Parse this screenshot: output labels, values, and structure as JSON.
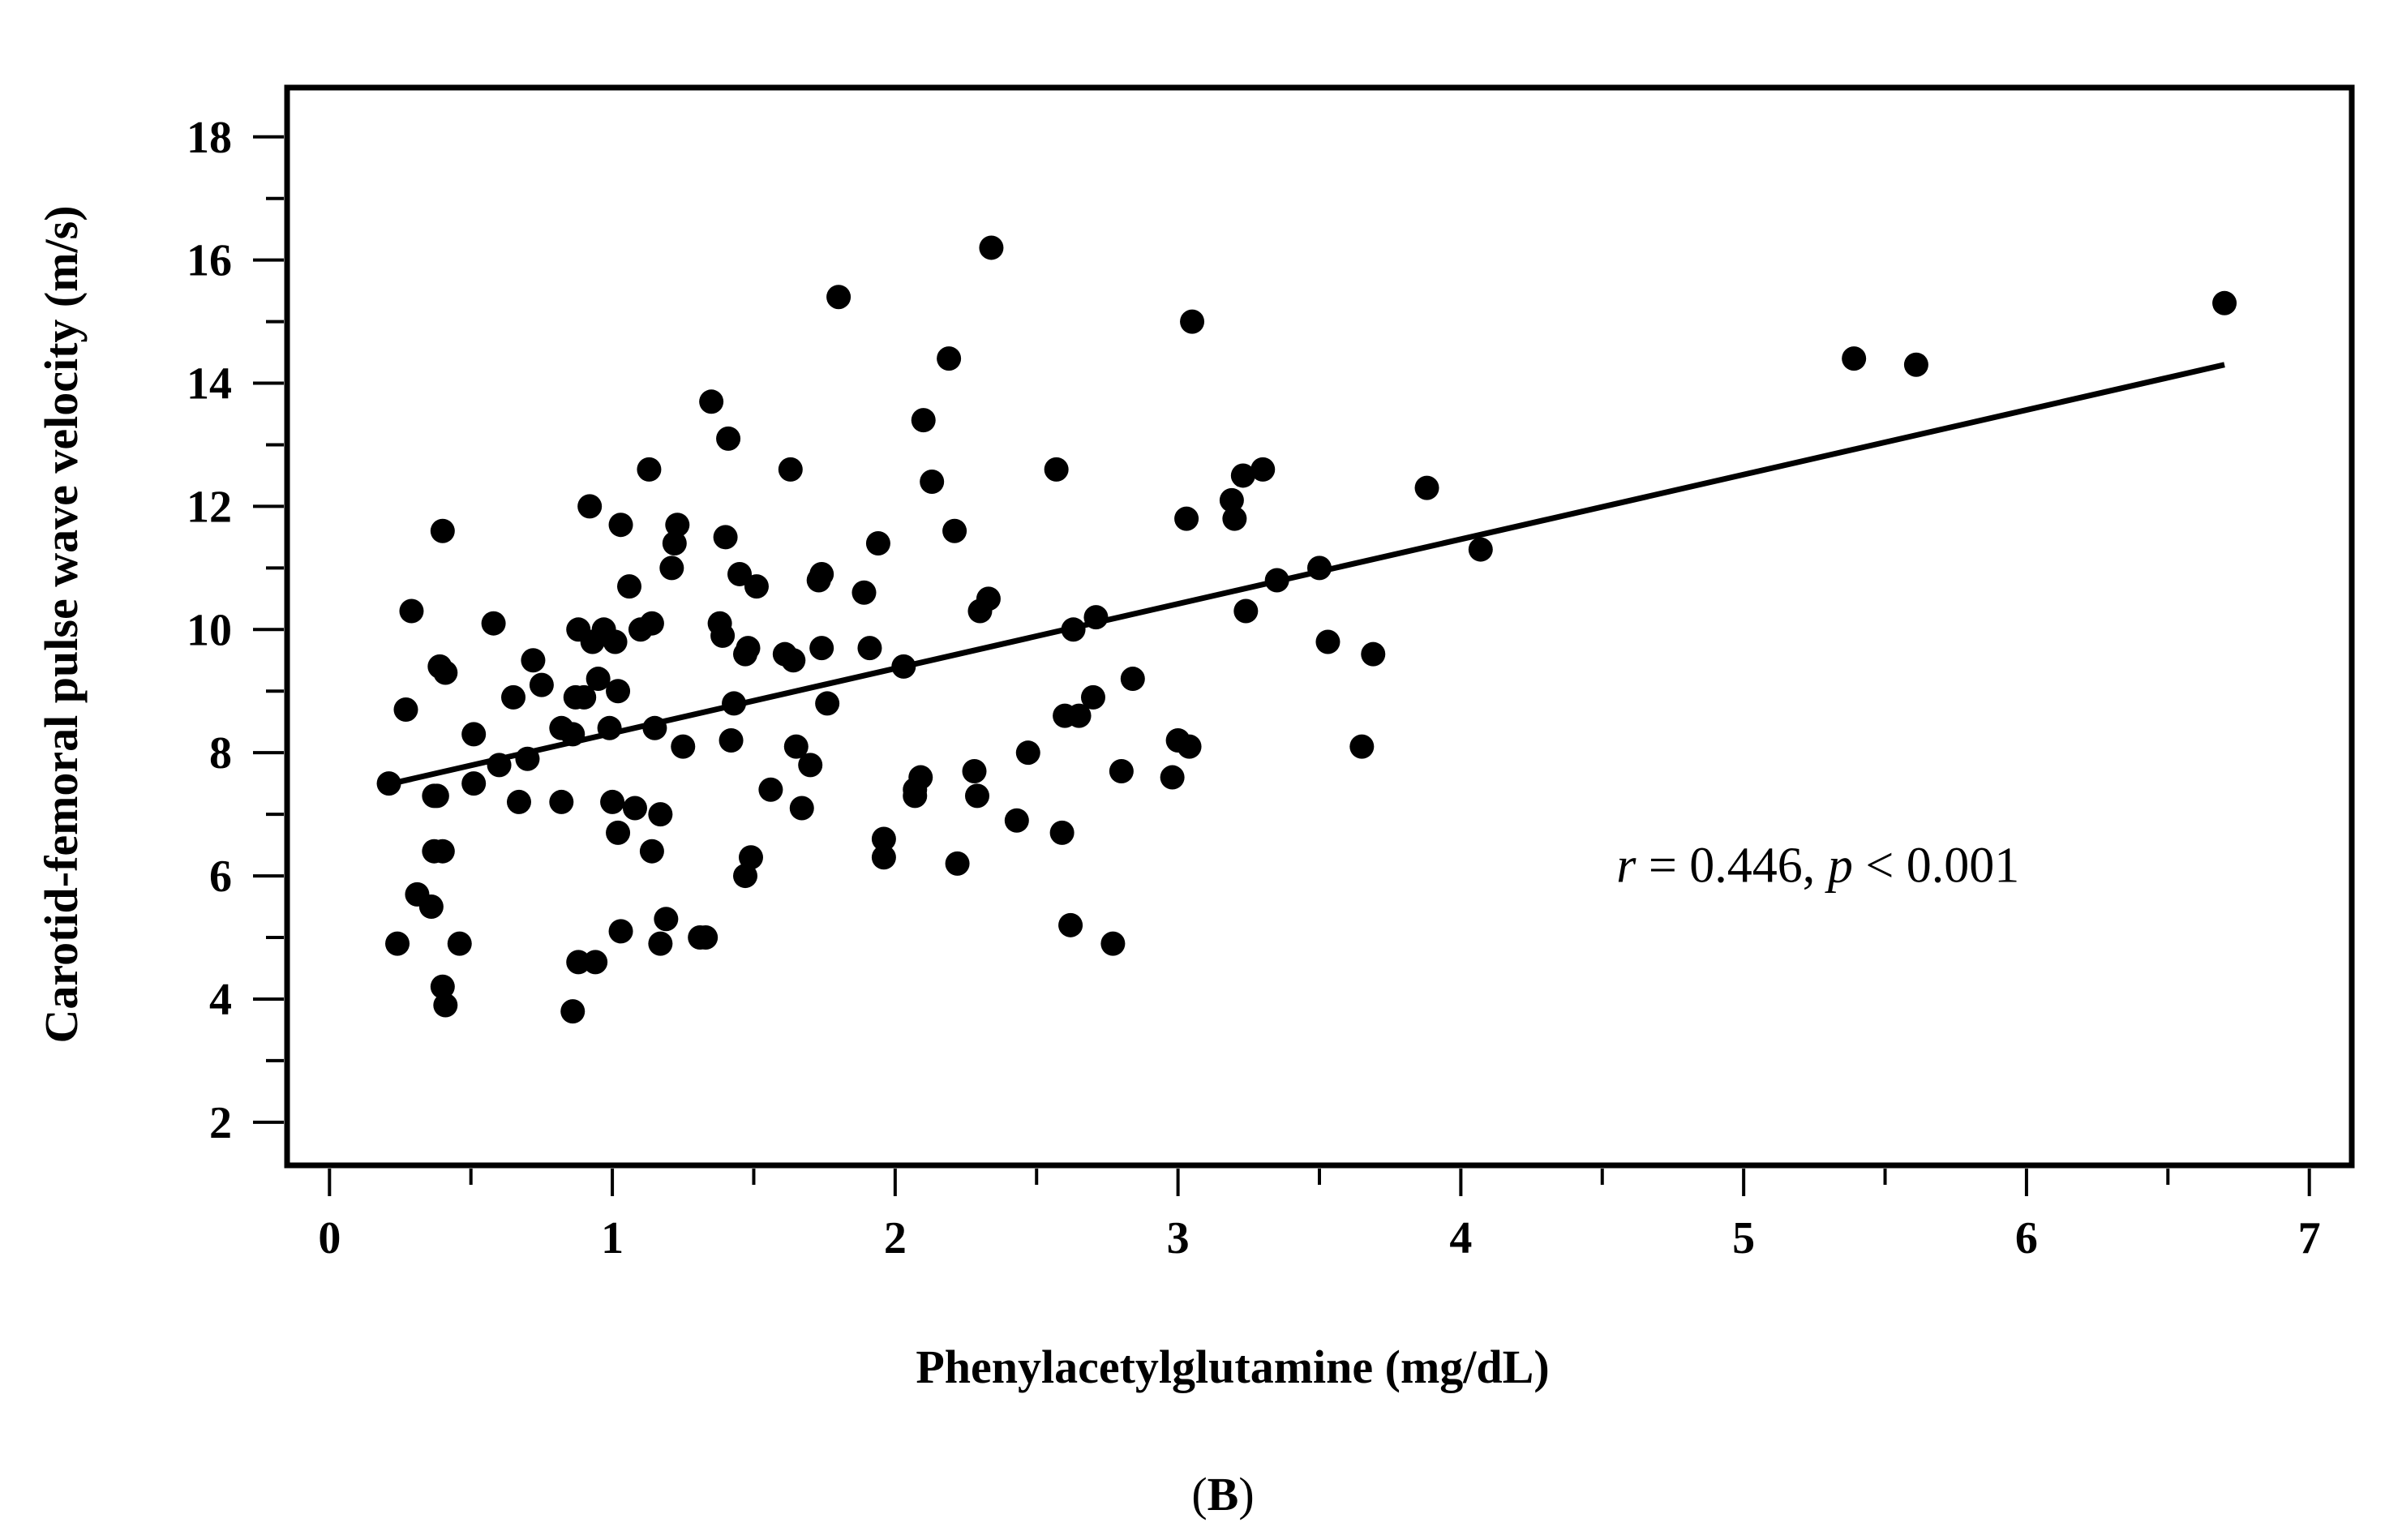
{
  "chart_data": {
    "type": "scatter",
    "panel_label": "(B)",
    "panel_letter": "B",
    "xlabel": "Phenylacetylglutamine (mg/dL)",
    "ylabel": "Carotid-femoral pulse wave velocity (m/s)",
    "xlim": [
      -0.15,
      7.15
    ],
    "ylim": [
      1.3,
      18.8
    ],
    "x_ticks_major": [
      0,
      1,
      2,
      3,
      4,
      5,
      6,
      7
    ],
    "x_ticks_minor": [
      0.5,
      1.5,
      2.5,
      3.5,
      4.5,
      5.5,
      6.5
    ],
    "y_ticks_major": [
      2,
      4,
      6,
      8,
      10,
      12,
      14,
      16,
      18
    ],
    "y_ticks_minor": [
      3,
      5,
      7,
      9,
      11,
      13,
      15,
      17
    ],
    "x_tick_labels": [
      "0",
      "1",
      "2",
      "3",
      "4",
      "5",
      "6",
      "7"
    ],
    "y_tick_labels": [
      "2",
      "4",
      "6",
      "8",
      "10",
      "12",
      "14",
      "16",
      "18"
    ],
    "annotation": {
      "r_symbol": "r",
      "r_text": " = 0.446, ",
      "p_symbol": "p",
      "p_text": " < 0.001",
      "anchor": [
        4.55,
        5.9
      ]
    },
    "regression_line": {
      "x": [
        0.22,
        6.7
      ],
      "y": [
        7.5,
        14.3
      ]
    },
    "points": [
      [
        0.21,
        7.5
      ],
      [
        0.24,
        4.9
      ],
      [
        0.27,
        8.7
      ],
      [
        0.29,
        10.3
      ],
      [
        0.31,
        5.7
      ],
      [
        0.36,
        5.5
      ],
      [
        0.37,
        7.3
      ],
      [
        0.38,
        7.3
      ],
      [
        0.37,
        6.4
      ],
      [
        0.4,
        6.4
      ],
      [
        0.39,
        9.4
      ],
      [
        0.41,
        9.3
      ],
      [
        0.4,
        11.6
      ],
      [
        0.4,
        4.2
      ],
      [
        0.41,
        3.9
      ],
      [
        0.46,
        4.9
      ],
      [
        0.51,
        8.3
      ],
      [
        0.51,
        7.5
      ],
      [
        0.58,
        10.1
      ],
      [
        0.6,
        7.8
      ],
      [
        0.65,
        8.9
      ],
      [
        0.67,
        7.2
      ],
      [
        0.7,
        7.9
      ],
      [
        0.72,
        9.5
      ],
      [
        0.75,
        9.1
      ],
      [
        0.82,
        8.4
      ],
      [
        0.82,
        7.2
      ],
      [
        0.86,
        8.3
      ],
      [
        0.86,
        3.8
      ],
      [
        0.87,
        8.9
      ],
      [
        0.88,
        4.6
      ],
      [
        0.88,
        10.0
      ],
      [
        0.9,
        8.9
      ],
      [
        0.92,
        12.0
      ],
      [
        0.93,
        9.8
      ],
      [
        0.94,
        4.6
      ],
      [
        0.95,
        9.2
      ],
      [
        0.97,
        10.0
      ],
      [
        0.99,
        8.4
      ],
      [
        1.0,
        7.2
      ],
      [
        1.01,
        9.8
      ],
      [
        1.02,
        6.7
      ],
      [
        1.03,
        5.1
      ],
      [
        1.02,
        9.0
      ],
      [
        1.03,
        11.7
      ],
      [
        1.06,
        10.7
      ],
      [
        1.08,
        7.1
      ],
      [
        1.1,
        10.0
      ],
      [
        1.13,
        12.6
      ],
      [
        1.14,
        10.1
      ],
      [
        1.15,
        8.4
      ],
      [
        1.14,
        6.4
      ],
      [
        1.17,
        7.0
      ],
      [
        1.17,
        4.9
      ],
      [
        1.19,
        5.3
      ],
      [
        1.21,
        11.0
      ],
      [
        1.22,
        11.4
      ],
      [
        1.23,
        11.7
      ],
      [
        1.25,
        8.1
      ],
      [
        1.31,
        5.0
      ],
      [
        1.33,
        5.0
      ],
      [
        1.35,
        13.7
      ],
      [
        1.38,
        10.1
      ],
      [
        1.39,
        9.9
      ],
      [
        1.4,
        11.5
      ],
      [
        1.41,
        13.1
      ],
      [
        1.42,
        8.2
      ],
      [
        1.43,
        8.8
      ],
      [
        1.45,
        10.9
      ],
      [
        1.47,
        9.6
      ],
      [
        1.47,
        6.0
      ],
      [
        1.48,
        9.7
      ],
      [
        1.49,
        6.3
      ],
      [
        1.51,
        10.7
      ],
      [
        1.56,
        7.4
      ],
      [
        1.61,
        9.6
      ],
      [
        1.63,
        12.6
      ],
      [
        1.64,
        9.5
      ],
      [
        1.65,
        8.1
      ],
      [
        1.67,
        7.1
      ],
      [
        1.7,
        7.8
      ],
      [
        1.73,
        10.8
      ],
      [
        1.74,
        10.9
      ],
      [
        1.74,
        9.7
      ],
      [
        1.76,
        8.8
      ],
      [
        1.8,
        15.4
      ],
      [
        1.89,
        10.6
      ],
      [
        1.91,
        9.7
      ],
      [
        1.94,
        11.4
      ],
      [
        1.96,
        6.6
      ],
      [
        1.96,
        6.3
      ],
      [
        2.03,
        9.4
      ],
      [
        2.07,
        7.4
      ],
      [
        2.07,
        7.3
      ],
      [
        2.09,
        7.6
      ],
      [
        2.1,
        13.4
      ],
      [
        2.13,
        12.4
      ],
      [
        2.19,
        14.4
      ],
      [
        2.21,
        11.6
      ],
      [
        2.22,
        6.2
      ],
      [
        2.28,
        7.7
      ],
      [
        2.29,
        7.3
      ],
      [
        2.3,
        10.3
      ],
      [
        2.33,
        10.5
      ],
      [
        2.34,
        16.2
      ],
      [
        2.43,
        6.9
      ],
      [
        2.47,
        8.0
      ],
      [
        2.57,
        12.6
      ],
      [
        2.59,
        6.7
      ],
      [
        2.6,
        8.6
      ],
      [
        2.62,
        5.2
      ],
      [
        2.63,
        10.0
      ],
      [
        2.65,
        8.6
      ],
      [
        2.7,
        8.9
      ],
      [
        2.71,
        10.2
      ],
      [
        2.77,
        4.9
      ],
      [
        2.8,
        7.7
      ],
      [
        2.84,
        9.2
      ],
      [
        2.98,
        7.6
      ],
      [
        3.0,
        8.2
      ],
      [
        3.03,
        11.8
      ],
      [
        3.04,
        8.1
      ],
      [
        3.05,
        15.0
      ],
      [
        3.19,
        12.1
      ],
      [
        3.2,
        11.8
      ],
      [
        3.23,
        12.5
      ],
      [
        3.24,
        10.3
      ],
      [
        3.3,
        12.6
      ],
      [
        3.35,
        10.8
      ],
      [
        3.5,
        11.0
      ],
      [
        3.53,
        9.8
      ],
      [
        3.65,
        8.1
      ],
      [
        3.69,
        9.6
      ],
      [
        3.88,
        12.3
      ],
      [
        4.07,
        11.3
      ],
      [
        5.39,
        14.4
      ],
      [
        5.61,
        14.3
      ],
      [
        6.7,
        15.3
      ]
    ]
  }
}
